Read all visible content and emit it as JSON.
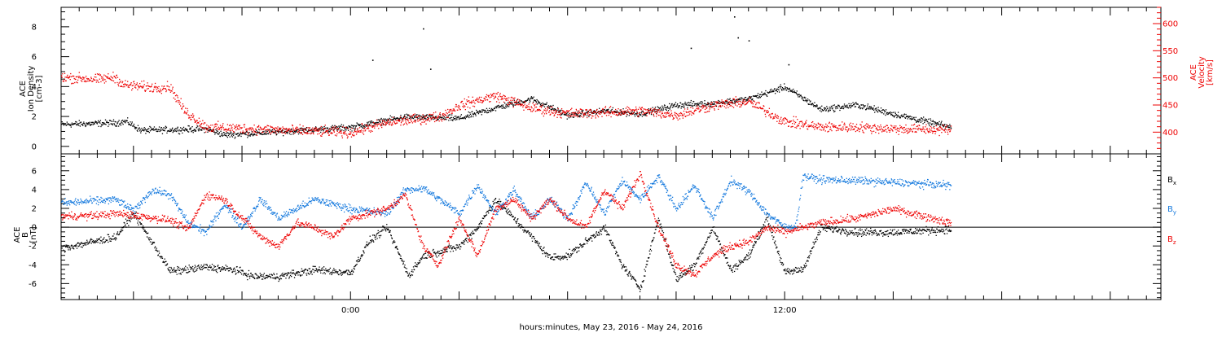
{
  "chart_data": [
    {
      "type": "scatter",
      "panel": "top",
      "xlabel": "hours:minutes, May 23, 2016 - May 24, 2016",
      "x_tick_labels": [
        {
          "label": "0:00",
          "hour": 24
        },
        {
          "label": "12:00",
          "hour": 36
        }
      ],
      "xlim_hours": [
        16,
        46.4
      ],
      "left_axis": {
        "label_lines": [
          "ACE",
          "Ion Density",
          "[cm-3]"
        ],
        "ylim": [
          -0.5,
          9.3
        ],
        "ticks": [
          0,
          2,
          4,
          6,
          8
        ],
        "color": "#000000"
      },
      "right_axis": {
        "label_lines": [
          "ACE",
          "Velocity",
          "[km/s]"
        ],
        "ylim": [
          360,
          630
        ],
        "ticks": [
          400,
          450,
          500,
          550,
          600
        ],
        "color": "#ee0000"
      },
      "series": [
        {
          "name": "",
          "axis": "left",
          "color": "#000000",
          "noise": 0.18,
          "x": [
            16,
            17.5,
            17.8,
            18.2,
            20,
            20.5,
            22,
            24,
            25.5,
            27,
            28,
            29,
            30,
            31,
            32,
            33,
            34,
            35,
            36,
            37,
            38,
            39,
            40.6
          ],
          "values": [
            1.5,
            1.6,
            1.7,
            1.1,
            1.2,
            0.8,
            1.0,
            1.3,
            2.0,
            1.9,
            2.6,
            3.2,
            2.1,
            2.4,
            2.2,
            2.8,
            2.9,
            3.2,
            4.0,
            2.5,
            2.8,
            2.2,
            1.3
          ]
        },
        {
          "name": "",
          "axis": "right",
          "color": "#ee0000",
          "noise": 8,
          "x": [
            16,
            17,
            17.5,
            17.7,
            18.5,
            19,
            19.4,
            20,
            22,
            24,
            25,
            26.5,
            27,
            28,
            29,
            30,
            31,
            32,
            33,
            34,
            35,
            36,
            37,
            38,
            39,
            40.6
          ],
          "values": [
            502,
            498,
            502,
            488,
            483,
            484,
            440,
            410,
            405,
            400,
            418,
            430,
            450,
            468,
            445,
            435,
            437,
            440,
            432,
            450,
            457,
            420,
            410,
            410,
            407,
            405
          ]
        }
      ],
      "spikes_density": [
        {
          "x": 24.6,
          "y": 5.8
        },
        {
          "x": 26.0,
          "y": 7.9
        },
        {
          "x": 26.2,
          "y": 5.2
        },
        {
          "x": 33.4,
          "y": 6.6
        },
        {
          "x": 34.6,
          "y": 8.7
        },
        {
          "x": 34.7,
          "y": 7.3
        },
        {
          "x": 35.0,
          "y": 7.1
        },
        {
          "x": 36.1,
          "y": 5.5
        }
      ]
    },
    {
      "type": "scatter",
      "panel": "bottom",
      "xlabel": "hours:minutes, May 23, 2016 - May 24, 2016",
      "x_tick_labels": [
        {
          "label": "0:00",
          "hour": 24
        },
        {
          "label": "12:00",
          "hour": 36
        }
      ],
      "xlim_hours": [
        16,
        46.4
      ],
      "left_axis": {
        "label_lines": [
          "ACE",
          "B",
          "[nT]"
        ],
        "ylim": [
          -7.7,
          7.8
        ],
        "ticks": [
          -6,
          -4,
          -2,
          0,
          2,
          4,
          6
        ],
        "color": "#000000"
      },
      "zero_line": 0,
      "series": [
        {
          "name": "Bx",
          "axis": "left",
          "color": "#000000",
          "noise": 0.35,
          "x": [
            16,
            17.5,
            18,
            19,
            19.2,
            20,
            20.8,
            21.3,
            22,
            23,
            24,
            24.5,
            25,
            25.6,
            26,
            27,
            27.5,
            28,
            29,
            29.5,
            30,
            31,
            31.5,
            32,
            32.5,
            33,
            33.5,
            34,
            34.5,
            35,
            35.5,
            36,
            36.5,
            37,
            38,
            39,
            40.6
          ],
          "values": [
            -2.2,
            -1.0,
            1.5,
            -4.6,
            -4.6,
            -4.2,
            -4.5,
            -5.2,
            -5.2,
            -4.5,
            -4.8,
            -1.5,
            0.0,
            -5.1,
            -3.0,
            -2.0,
            0.0,
            3.0,
            -1.0,
            -3.2,
            -3.0,
            0.0,
            -4.0,
            -6.5,
            1.0,
            -5.5,
            -4.0,
            0.0,
            -4.5,
            -3.0,
            1.0,
            -4.8,
            -4.4,
            0.0,
            -0.5,
            -0.5,
            -0.2
          ]
        },
        {
          "name": "By",
          "axis": "left",
          "color": "#1177dd",
          "noise": 0.35,
          "x": [
            16,
            17.5,
            18,
            18.5,
            19,
            19.5,
            20,
            20.5,
            21,
            21.5,
            22,
            23,
            23.5,
            24,
            25,
            25.5,
            26,
            27,
            27.5,
            28,
            28.5,
            29,
            29.5,
            30,
            30.5,
            31,
            31.5,
            32,
            32.5,
            33,
            33.5,
            34,
            34.5,
            35,
            35.5,
            36,
            36.3,
            36.5,
            37,
            38,
            39,
            40.6
          ],
          "values": [
            2.6,
            3.0,
            1.8,
            4.0,
            3.5,
            0.5,
            -0.5,
            2.5,
            0.0,
            3.0,
            1.0,
            3.0,
            2.5,
            2.0,
            1.5,
            4.0,
            4.2,
            1.5,
            4.5,
            1.5,
            4.0,
            1.0,
            3.0,
            1.0,
            4.8,
            1.5,
            5.0,
            3.0,
            5.5,
            2.0,
            4.5,
            1.0,
            5.0,
            3.8,
            1.5,
            0.0,
            0.2,
            5.5,
            5.1,
            5.0,
            4.8,
            4.5
          ]
        },
        {
          "name": "Bz",
          "axis": "left",
          "color": "#ee0000",
          "noise": 0.35,
          "x": [
            16,
            17,
            17.5,
            18,
            19,
            19.5,
            20,
            20.5,
            21,
            21.5,
            22,
            22.5,
            23,
            23.5,
            24,
            25,
            25.5,
            26,
            26.4,
            27,
            27.5,
            28,
            28.5,
            29,
            29.5,
            30,
            30.5,
            31,
            31.5,
            32,
            32.5,
            33,
            33.5,
            34,
            34.5,
            35,
            35.5,
            36,
            37,
            38,
            39,
            40.6
          ],
          "values": [
            1.2,
            1.3,
            1.5,
            1.3,
            0.8,
            -0.2,
            3.5,
            3.0,
            1.0,
            -1.0,
            -2.0,
            0.5,
            0.0,
            -1.0,
            1.0,
            2.0,
            3.5,
            -2.0,
            -4.0,
            1.0,
            -3.0,
            2.0,
            3.0,
            1.0,
            3.0,
            1.0,
            0.0,
            4.0,
            2.0,
            5.8,
            0.0,
            -4.0,
            -5.0,
            -3.0,
            -2.0,
            -1.5,
            0.0,
            -0.5,
            0.5,
            1.0,
            2.0,
            0.5
          ]
        }
      ],
      "legend": [
        {
          "main": "B",
          "sub": "x",
          "color": "#000000"
        },
        {
          "main": "B",
          "sub": "y",
          "color": "#1177dd"
        },
        {
          "main": "B",
          "sub": "z",
          "color": "#ee0000"
        }
      ]
    }
  ]
}
